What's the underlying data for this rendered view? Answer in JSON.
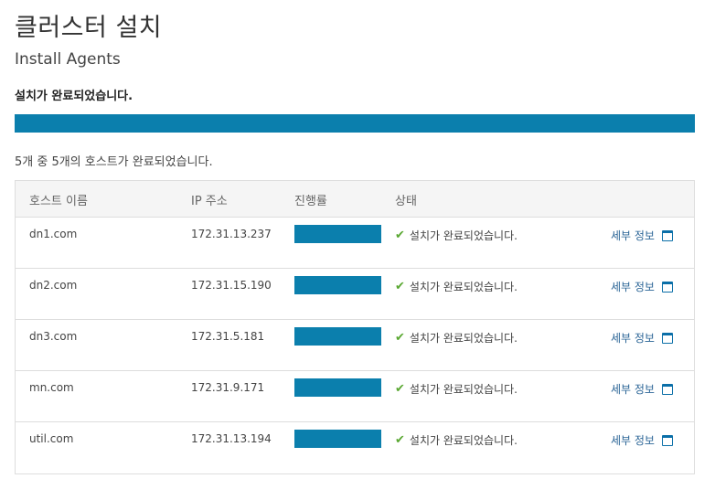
{
  "page": {
    "title": "클러스터 설치",
    "subtitle": "Install Agents",
    "status_message": "설치가 완료되었습니다.",
    "overall_progress": 1.0,
    "summary": "5개 중 5개의 호스트가 완료되었습니다."
  },
  "table": {
    "headers": [
      "호스트 이름",
      "IP 주소",
      "진행률",
      "상태"
    ],
    "rows": [
      {
        "host": "dn1.com",
        "ip": "172.31.13.237",
        "progress": 1.0,
        "status": "설치가 완료되었습니다.",
        "detail": "세부 정보"
      },
      {
        "host": "dn2.com",
        "ip": "172.31.15.190",
        "progress": 1.0,
        "status": "설치가 완료되었습니다.",
        "detail": "세부 정보"
      },
      {
        "host": "dn3.com",
        "ip": "172.31.5.181",
        "progress": 1.0,
        "status": "설치가 완료되었습니다.",
        "detail": "세부 정보"
      },
      {
        "host": "mn.com",
        "ip": "172.31.9.171",
        "progress": 1.0,
        "status": "설치가 완료되었습니다.",
        "detail": "세부 정보"
      },
      {
        "host": "util.com",
        "ip": "172.31.13.194",
        "progress": 1.0,
        "status": "설치가 완료되었습니다.",
        "detail": "세부 정보"
      }
    ]
  },
  "icons": {
    "status": "checkmark-icon",
    "detail": "window-icon"
  },
  "colors": {
    "progress": "#0b7fad",
    "success": "#5aa832",
    "link": "#2a6496"
  }
}
